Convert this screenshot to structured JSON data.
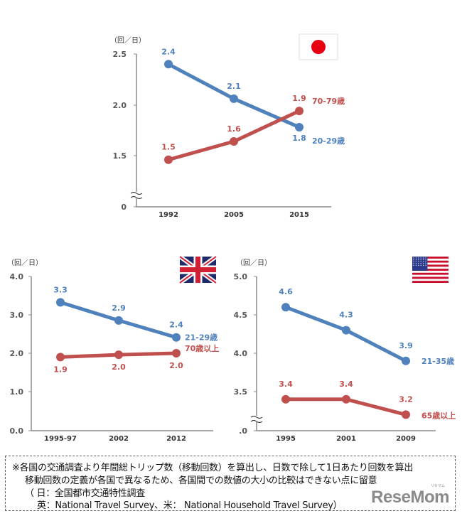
{
  "colors": {
    "series_young": "#4f81bd",
    "series_old": "#c0504d",
    "axis": "#8c8c8c",
    "tick_text": "#595959"
  },
  "chart_data": [
    {
      "id": "japan",
      "type": "line",
      "country_flag": "japan-flag",
      "unit_label": "（回／日）",
      "categories": [
        "1992",
        "2005",
        "2015"
      ],
      "y_ticks": [
        "2.5",
        "2.0",
        "1.5",
        "0"
      ],
      "ylim": [
        1.0,
        2.5
      ],
      "axis_break": true,
      "grid": false,
      "series": [
        {
          "name": "20-29歳",
          "color_key": "series_young",
          "values": [
            2.4,
            2.06,
            1.78
          ],
          "labels": [
            "2.4",
            "2.1",
            "1.8"
          ]
        },
        {
          "name": "70-79歳",
          "color_key": "series_old",
          "values": [
            1.46,
            1.64,
            1.94
          ],
          "labels": [
            "1.5",
            "1.6",
            "1.9"
          ]
        }
      ]
    },
    {
      "id": "uk",
      "type": "line",
      "country_flag": "uk-flag",
      "unit_label": "（回／日）",
      "categories": [
        "1995-97",
        "2002",
        "2012"
      ],
      "y_ticks": [
        "4.0",
        "3.0",
        "2.0",
        "1.0",
        "0.0"
      ],
      "ylim": [
        0.0,
        4.0
      ],
      "axis_break": false,
      "grid": false,
      "series": [
        {
          "name": "21-29歳",
          "color_key": "series_young",
          "values": [
            3.33,
            2.86,
            2.42
          ],
          "labels": [
            "3.3",
            "2.9",
            "2.4"
          ]
        },
        {
          "name": "70歳以上",
          "color_key": "series_old",
          "values": [
            1.91,
            1.97,
            2.01
          ],
          "labels": [
            "1.9",
            "2.0",
            "2.0"
          ]
        }
      ]
    },
    {
      "id": "usa",
      "type": "line",
      "country_flag": "usa-flag",
      "unit_label": "（回／日）",
      "categories": [
        "1995",
        "2001",
        "2009"
      ],
      "y_ticks": [
        "5.0",
        "4.5",
        "4.0",
        "3.5",
        ".0"
      ],
      "ylim": [
        3.0,
        5.0
      ],
      "axis_break": true,
      "grid": false,
      "series": [
        {
          "name": "21-35歳",
          "color_key": "series_young",
          "values": [
            4.6,
            4.3,
            3.9
          ],
          "labels": [
            "4.6",
            "4.3",
            "3.9"
          ]
        },
        {
          "name": "65歳以上",
          "color_key": "series_old",
          "values": [
            3.4,
            3.4,
            3.2
          ],
          "labels": [
            "3.4",
            "3.4",
            "3.2"
          ]
        }
      ]
    }
  ],
  "note": {
    "line1": "※各国の交通調査より年間総トリップ数（移動回数）を算出し、日数で除して1日あたり回数を算出",
    "line2": "移動回数の定義が各国で異なるため、各国間での数値の大小の比較はできない点に留意",
    "line3": "（ 日：全国都市交通特性調査",
    "line4": "英：National Travel Survey、米： National Household Travel Survey）"
  },
  "logo": {
    "text": "ReseMom",
    "small": "リセマム"
  }
}
